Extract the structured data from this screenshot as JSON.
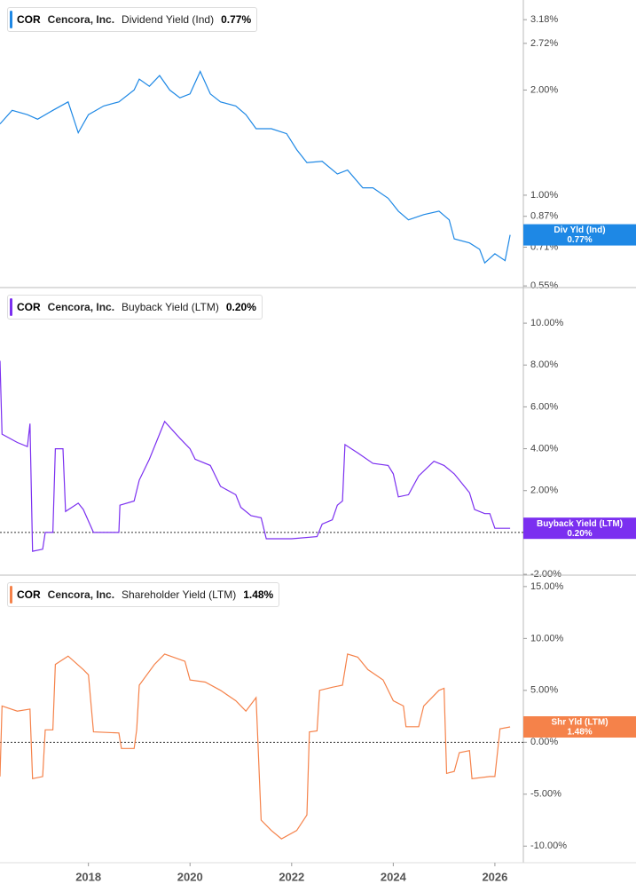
{
  "chart_data": [
    {
      "type": "line",
      "ticker": "COR",
      "company": "Cencora, Inc.",
      "metric": "Dividend Yield (Ind)",
      "badge": "Div Yld (Ind)",
      "current": {
        "value": 0.77,
        "label": "0.77%"
      },
      "color": "#1e88e5",
      "log_scale": true,
      "zero_line": false,
      "xlim": [
        2016.26,
        2026.56
      ],
      "ylim": [
        0.544,
        3.62
      ],
      "yticks": [
        {
          "value": 3.18,
          "label": "3.18%"
        },
        {
          "value": 2.72,
          "label": "2.72%"
        },
        {
          "value": 2.0,
          "label": "2.00%"
        },
        {
          "value": 1.0,
          "label": "1.00%"
        },
        {
          "value": 0.87,
          "label": "0.87%"
        },
        {
          "value": 0.71,
          "label": "0.71%"
        },
        {
          "value": 0.55,
          "label": "0.55%"
        }
      ],
      "x": [
        2016.26,
        2016.5,
        2016.8,
        2017.0,
        2017.3,
        2017.6,
        2017.8,
        2018.0,
        2018.3,
        2018.6,
        2018.9,
        2019.0,
        2019.2,
        2019.4,
        2019.6,
        2019.8,
        2020.0,
        2020.2,
        2020.4,
        2020.6,
        2020.9,
        2021.1,
        2021.3,
        2021.6,
        2021.9,
        2022.1,
        2022.3,
        2022.6,
        2022.9,
        2023.1,
        2023.4,
        2023.6,
        2023.9,
        2024.1,
        2024.3,
        2024.6,
        2024.9,
        2025.1,
        2025.2,
        2025.5,
        2025.7,
        2025.8,
        2026.0,
        2026.2,
        2026.3
      ],
      "values": [
        1.6,
        1.75,
        1.7,
        1.65,
        1.75,
        1.85,
        1.51,
        1.7,
        1.8,
        1.85,
        2.0,
        2.15,
        2.05,
        2.2,
        2.0,
        1.9,
        1.95,
        2.26,
        1.95,
        1.85,
        1.8,
        1.7,
        1.55,
        1.55,
        1.5,
        1.35,
        1.24,
        1.25,
        1.15,
        1.18,
        1.05,
        1.05,
        0.98,
        0.9,
        0.85,
        0.88,
        0.9,
        0.85,
        0.75,
        0.73,
        0.7,
        0.64,
        0.68,
        0.65,
        0.77
      ]
    },
    {
      "type": "line",
      "ticker": "COR",
      "company": "Cencora, Inc.",
      "metric": "Buyback Yield (LTM)",
      "badge": "Buyback Yield (LTM)",
      "current": {
        "value": 0.2,
        "label": "0.20%"
      },
      "color": "#7b2ff0",
      "log_scale": false,
      "zero_line": true,
      "xlim": [
        2016.26,
        2026.56
      ],
      "ylim": [
        -2.04,
        11.7
      ],
      "yticks": [
        {
          "value": 10,
          "label": "10.00%"
        },
        {
          "value": 8,
          "label": "8.00%"
        },
        {
          "value": 6,
          "label": "6.00%"
        },
        {
          "value": 4,
          "label": "4.00%"
        },
        {
          "value": 2,
          "label": "2.00%"
        },
        {
          "value": -2,
          "label": "-2.00%"
        }
      ],
      "x": [
        2016.26,
        2016.3,
        2016.6,
        2016.8,
        2016.85,
        2016.9,
        2017.1,
        2017.15,
        2017.3,
        2017.35,
        2017.5,
        2017.55,
        2017.8,
        2017.9,
        2018.1,
        2018.6,
        2018.62,
        2018.9,
        2019.0,
        2019.2,
        2019.5,
        2019.8,
        2020.0,
        2020.1,
        2020.4,
        2020.6,
        2020.9,
        2021.0,
        2021.2,
        2021.4,
        2021.5,
        2022.0,
        2022.5,
        2022.6,
        2022.8,
        2022.9,
        2023.0,
        2023.05,
        2023.3,
        2023.6,
        2023.9,
        2024.0,
        2024.1,
        2024.3,
        2024.5,
        2024.8,
        2025.0,
        2025.2,
        2025.3,
        2025.5,
        2025.6,
        2025.8,
        2025.9,
        2026.0,
        2026.3
      ],
      "values": [
        8.2,
        4.7,
        4.3,
        4.1,
        5.2,
        -0.9,
        -0.8,
        0.0,
        0.0,
        4.0,
        4.0,
        1.0,
        1.4,
        1.1,
        0.0,
        0.0,
        1.3,
        1.5,
        2.5,
        3.5,
        5.3,
        4.5,
        4.0,
        3.5,
        3.2,
        2.2,
        1.8,
        1.2,
        0.8,
        0.7,
        -0.3,
        -0.3,
        -0.2,
        0.4,
        0.6,
        1.3,
        1.5,
        4.2,
        3.8,
        3.3,
        3.2,
        2.8,
        1.7,
        1.8,
        2.7,
        3.4,
        3.2,
        2.8,
        2.5,
        1.9,
        1.1,
        0.9,
        0.9,
        0.2,
        0.2
      ]
    },
    {
      "type": "line",
      "ticker": "COR",
      "company": "Cencora, Inc.",
      "metric": "Shareholder Yield (LTM)",
      "badge": "Shr Yld (LTM)",
      "current": {
        "value": 1.48,
        "label": "1.48%"
      },
      "color": "#f5824a",
      "log_scale": false,
      "zero_line": true,
      "xlim": [
        2016.26,
        2026.56
      ],
      "ylim": [
        -11.6,
        16.1
      ],
      "yticks": [
        {
          "value": 15,
          "label": "15.00%"
        },
        {
          "value": 10,
          "label": "10.00%"
        },
        {
          "value": 5,
          "label": "5.00%"
        },
        {
          "value": 0,
          "label": "0.00%"
        },
        {
          "value": -5,
          "label": "-5.00%"
        },
        {
          "value": -10,
          "label": "-10.00%"
        }
      ],
      "xticks": [
        2018,
        2020,
        2022,
        2024,
        2026
      ],
      "x": [
        2016.26,
        2016.3,
        2016.6,
        2016.85,
        2016.9,
        2017.1,
        2017.15,
        2017.3,
        2017.35,
        2017.6,
        2017.9,
        2018.0,
        2018.1,
        2018.6,
        2018.65,
        2018.9,
        2018.95,
        2019.0,
        2019.3,
        2019.5,
        2019.9,
        2020.0,
        2020.3,
        2020.6,
        2020.9,
        2021.1,
        2021.3,
        2021.4,
        2021.6,
        2021.8,
        2022.1,
        2022.3,
        2022.35,
        2022.5,
        2022.55,
        2022.8,
        2023.0,
        2023.1,
        2023.3,
        2023.5,
        2023.8,
        2024.0,
        2024.2,
        2024.25,
        2024.5,
        2024.6,
        2024.9,
        2025.0,
        2025.05,
        2025.2,
        2025.3,
        2025.5,
        2025.55,
        2025.9,
        2026.0,
        2026.1,
        2026.3
      ],
      "values": [
        -3.3,
        3.5,
        3.0,
        3.2,
        -3.5,
        -3.3,
        1.2,
        1.2,
        7.5,
        8.3,
        7.0,
        6.5,
        1.0,
        0.9,
        -0.6,
        -0.6,
        1.2,
        5.5,
        7.5,
        8.5,
        7.8,
        6.0,
        5.8,
        5.0,
        4.0,
        3.0,
        4.3,
        -7.5,
        -8.5,
        -9.3,
        -8.5,
        -7.0,
        1.0,
        1.1,
        5.0,
        5.3,
        5.5,
        8.5,
        8.2,
        7.0,
        6.0,
        4.0,
        3.5,
        1.5,
        1.5,
        3.5,
        5.0,
        5.2,
        -3.0,
        -2.8,
        -1.0,
        -0.8,
        -3.5,
        -3.3,
        -3.3,
        1.3,
        1.48
      ]
    }
  ]
}
